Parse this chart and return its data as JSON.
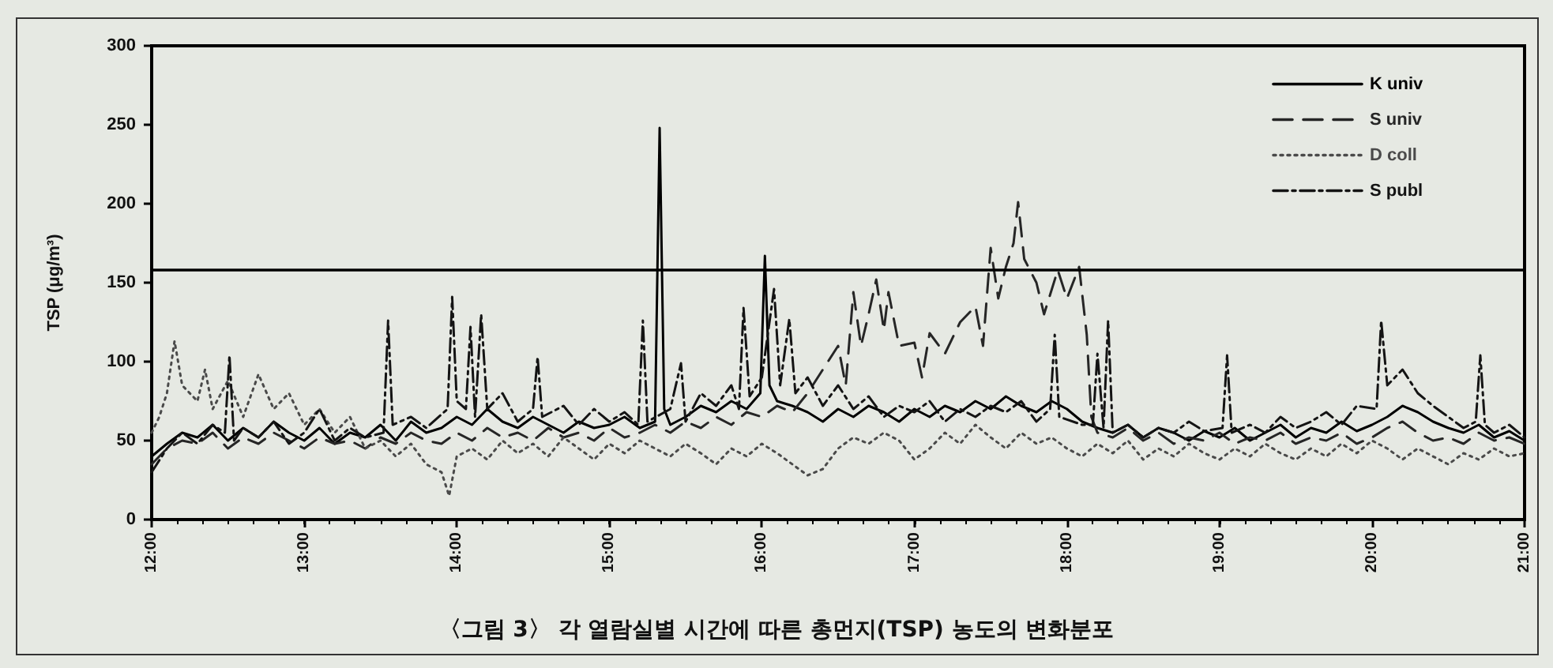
{
  "chart_data": {
    "type": "line",
    "title": "〈그림 3〉 각 열람실별 시간에 따른 총먼지(TSP) 농도의 변화분포",
    "ylabel": "TSP (μg/m³)",
    "xlim": [
      12,
      21
    ],
    "xticks": [
      {
        "value": 12,
        "label": "12:00"
      },
      {
        "value": 13,
        "label": "13:00"
      },
      {
        "value": 14,
        "label": "14:00"
      },
      {
        "value": 15,
        "label": "15:00"
      },
      {
        "value": 16,
        "label": "16:00"
      },
      {
        "value": 17,
        "label": "17:00"
      },
      {
        "value": 18,
        "label": "18:00"
      },
      {
        "value": 19,
        "label": "19:00"
      },
      {
        "value": 20,
        "label": "20:00"
      },
      {
        "value": 21,
        "label": "21:00"
      }
    ],
    "ylim": [
      0,
      300
    ],
    "yticks": [
      0,
      50,
      100,
      150,
      200,
      250,
      300
    ],
    "legend": "top right",
    "ref_lines": [
      {
        "axis": "y",
        "value": 158,
        "color": "#000000",
        "line_style": "solid"
      }
    ],
    "series": [
      {
        "name": "K univ",
        "color": "#000000",
        "line_style": "solid",
        "x": [
          12.0,
          12.1,
          12.2,
          12.3,
          12.4,
          12.5,
          12.6,
          12.7,
          12.8,
          12.9,
          13.0,
          13.1,
          13.2,
          13.3,
          13.4,
          13.5,
          13.6,
          13.7,
          13.8,
          13.9,
          14.0,
          14.1,
          14.2,
          14.3,
          14.4,
          14.5,
          14.6,
          14.7,
          14.8,
          14.9,
          15.0,
          15.1,
          15.2,
          15.3,
          15.33,
          15.36,
          15.4,
          15.5,
          15.6,
          15.7,
          15.8,
          15.9,
          15.99,
          16.02,
          16.05,
          16.1,
          16.2,
          16.3,
          16.4,
          16.5,
          16.6,
          16.7,
          16.8,
          16.9,
          17.0,
          17.1,
          17.2,
          17.3,
          17.4,
          17.5,
          17.6,
          17.7,
          17.8,
          17.9,
          18.0,
          18.1,
          18.2,
          18.3,
          18.4,
          18.5,
          18.6,
          18.7,
          18.8,
          18.9,
          19.0,
          19.1,
          19.2,
          19.3,
          19.4,
          19.5,
          19.6,
          19.7,
          19.8,
          19.9,
          20.0,
          20.1,
          20.2,
          20.3,
          20.4,
          20.5,
          20.6,
          20.7,
          20.8,
          20.9,
          21.0
        ],
        "values": [
          40,
          48,
          55,
          52,
          60,
          50,
          58,
          52,
          62,
          55,
          50,
          58,
          48,
          55,
          52,
          60,
          50,
          62,
          55,
          58,
          65,
          60,
          70,
          62,
          58,
          65,
          60,
          55,
          62,
          58,
          60,
          65,
          58,
          62,
          248,
          70,
          60,
          65,
          72,
          68,
          75,
          70,
          80,
          167,
          85,
          75,
          72,
          68,
          62,
          70,
          65,
          72,
          68,
          62,
          70,
          65,
          72,
          68,
          75,
          70,
          78,
          72,
          68,
          75,
          70,
          62,
          58,
          55,
          60,
          52,
          58,
          55,
          50,
          56,
          52,
          58,
          50,
          55,
          60,
          52,
          58,
          55,
          62,
          56,
          60,
          65,
          72,
          68,
          62,
          58,
          55,
          60,
          52,
          56,
          50
        ]
      },
      {
        "name": "S univ",
        "color": "#262626",
        "line_style": "dashed",
        "x": [
          12.0,
          12.1,
          12.2,
          12.3,
          12.4,
          12.5,
          12.6,
          12.7,
          12.8,
          12.9,
          13.0,
          13.1,
          13.2,
          13.3,
          13.4,
          13.5,
          13.6,
          13.7,
          13.8,
          13.9,
          14.0,
          14.1,
          14.2,
          14.3,
          14.4,
          14.5,
          14.6,
          14.7,
          14.8,
          14.9,
          15.0,
          15.1,
          15.2,
          15.3,
          15.4,
          15.5,
          15.6,
          15.7,
          15.8,
          15.9,
          16.0,
          16.1,
          16.2,
          16.3,
          16.4,
          16.5,
          16.55,
          16.6,
          16.65,
          16.7,
          16.75,
          16.8,
          16.83,
          16.9,
          17.0,
          17.05,
          17.1,
          17.2,
          17.3,
          17.4,
          17.45,
          17.5,
          17.55,
          17.6,
          17.65,
          17.68,
          17.72,
          17.8,
          17.85,
          17.94,
          18.0,
          18.08,
          18.13,
          18.16,
          18.2,
          18.3,
          18.4,
          18.5,
          18.6,
          18.7,
          18.8,
          18.9,
          19.0,
          19.1,
          19.2,
          19.3,
          19.4,
          19.5,
          19.6,
          19.7,
          19.8,
          19.9,
          20.0,
          20.1,
          20.2,
          20.3,
          20.4,
          20.5,
          20.6,
          20.7,
          20.8,
          20.9,
          21.0
        ],
        "values": [
          35,
          45,
          50,
          48,
          55,
          45,
          52,
          48,
          55,
          50,
          45,
          52,
          48,
          50,
          45,
          52,
          48,
          55,
          50,
          48,
          55,
          50,
          58,
          52,
          55,
          50,
          58,
          52,
          55,
          50,
          58,
          52,
          55,
          60,
          55,
          62,
          58,
          65,
          60,
          68,
          65,
          72,
          68,
          80,
          95,
          110,
          85,
          144,
          110,
          130,
          152,
          120,
          144,
          110,
          112,
          90,
          118,
          105,
          125,
          135,
          110,
          172,
          140,
          160,
          175,
          201,
          165,
          150,
          130,
          158,
          140,
          160,
          117,
          65,
          55,
          52,
          58,
          50,
          55,
          48,
          52,
          50,
          55,
          48,
          52,
          50,
          55,
          48,
          52,
          50,
          55,
          48,
          52,
          58,
          62,
          55,
          50,
          52,
          48,
          55,
          50,
          52,
          48
        ]
      },
      {
        "name": "D coll",
        "color": "#4a4a4a",
        "line_style": "dotted",
        "x": [
          12.0,
          12.05,
          12.1,
          12.15,
          12.2,
          12.3,
          12.35,
          12.4,
          12.5,
          12.6,
          12.7,
          12.8,
          12.9,
          13.0,
          13.1,
          13.2,
          13.3,
          13.4,
          13.5,
          13.6,
          13.7,
          13.8,
          13.9,
          13.95,
          14.0,
          14.1,
          14.2,
          14.3,
          14.4,
          14.5,
          14.6,
          14.7,
          14.8,
          14.9,
          15.0,
          15.1,
          15.2,
          15.3,
          15.4,
          15.5,
          15.6,
          15.7,
          15.8,
          15.9,
          16.0,
          16.1,
          16.2,
          16.3,
          16.4,
          16.5,
          16.6,
          16.7,
          16.8,
          16.9,
          17.0,
          17.1,
          17.2,
          17.3,
          17.4,
          17.5,
          17.6,
          17.7,
          17.8,
          17.9,
          18.0,
          18.1,
          18.2,
          18.3,
          18.4,
          18.5,
          18.6,
          18.7,
          18.8,
          18.9,
          19.0,
          19.1,
          19.2,
          19.3,
          19.4,
          19.5,
          19.6,
          19.7,
          19.8,
          19.9,
          20.0,
          20.1,
          20.2,
          20.3,
          20.4,
          20.5,
          20.6,
          20.7,
          20.8,
          20.9,
          21.0
        ],
        "values": [
          55,
          65,
          80,
          113,
          85,
          75,
          95,
          70,
          88,
          65,
          92,
          70,
          80,
          60,
          70,
          55,
          65,
          45,
          50,
          40,
          48,
          35,
          30,
          15,
          40,
          45,
          38,
          50,
          42,
          48,
          40,
          52,
          45,
          38,
          48,
          42,
          50,
          45,
          40,
          48,
          42,
          35,
          45,
          40,
          48,
          42,
          35,
          28,
          32,
          45,
          52,
          48,
          55,
          50,
          38,
          45,
          55,
          48,
          60,
          52,
          45,
          55,
          48,
          52,
          45,
          40,
          48,
          42,
          50,
          38,
          45,
          40,
          48,
          42,
          38,
          45,
          40,
          48,
          42,
          38,
          45,
          40,
          48,
          42,
          50,
          45,
          38,
          45,
          40,
          35,
          42,
          38,
          45,
          40,
          42
        ]
      },
      {
        "name": "S publ",
        "color": "#141414",
        "line_style": "dashdot",
        "x": [
          12.0,
          12.1,
          12.2,
          12.3,
          12.4,
          12.48,
          12.51,
          12.54,
          12.6,
          12.7,
          12.8,
          12.9,
          13.0,
          13.1,
          13.2,
          13.3,
          13.4,
          13.52,
          13.55,
          13.58,
          13.7,
          13.8,
          13.94,
          13.97,
          14.0,
          14.06,
          14.09,
          14.12,
          14.16,
          14.2,
          14.3,
          14.4,
          14.5,
          14.53,
          14.56,
          14.7,
          14.8,
          14.9,
          15.0,
          15.1,
          15.19,
          15.22,
          15.25,
          15.4,
          15.47,
          15.5,
          15.6,
          15.7,
          15.8,
          15.85,
          15.88,
          15.92,
          16.0,
          16.08,
          16.12,
          16.18,
          16.22,
          16.3,
          16.4,
          16.5,
          16.6,
          16.7,
          16.8,
          16.9,
          17.0,
          17.1,
          17.2,
          17.3,
          17.4,
          17.5,
          17.6,
          17.7,
          17.8,
          17.89,
          17.92,
          17.95,
          18.1,
          18.17,
          18.2,
          18.24,
          18.27,
          18.3,
          18.4,
          18.5,
          18.6,
          18.7,
          18.8,
          18.9,
          19.02,
          19.05,
          19.08,
          19.2,
          19.3,
          19.4,
          19.5,
          19.6,
          19.7,
          19.8,
          19.9,
          20.03,
          20.06,
          20.1,
          20.2,
          20.3,
          20.4,
          20.5,
          20.6,
          20.68,
          20.71,
          20.74,
          20.8,
          20.9,
          21.0
        ],
        "values": [
          30,
          45,
          55,
          48,
          60,
          55,
          104,
          50,
          58,
          52,
          62,
          48,
          55,
          70,
          50,
          58,
          52,
          55,
          126,
          60,
          65,
          58,
          70,
          141,
          75,
          70,
          122,
          65,
          130,
          70,
          80,
          62,
          70,
          103,
          65,
          72,
          60,
          70,
          62,
          68,
          60,
          126,
          62,
          70,
          99,
          62,
          80,
          72,
          85,
          70,
          134,
          78,
          90,
          146,
          85,
          127,
          80,
          90,
          72,
          85,
          70,
          78,
          65,
          72,
          68,
          75,
          62,
          70,
          65,
          72,
          68,
          75,
          62,
          70,
          117,
          65,
          60,
          60,
          105,
          58,
          126,
          55,
          60,
          52,
          58,
          55,
          62,
          56,
          58,
          104,
          55,
          60,
          55,
          65,
          58,
          62,
          68,
          60,
          72,
          70,
          126,
          85,
          95,
          80,
          72,
          65,
          58,
          62,
          104,
          60,
          55,
          60,
          52
        ]
      }
    ]
  }
}
